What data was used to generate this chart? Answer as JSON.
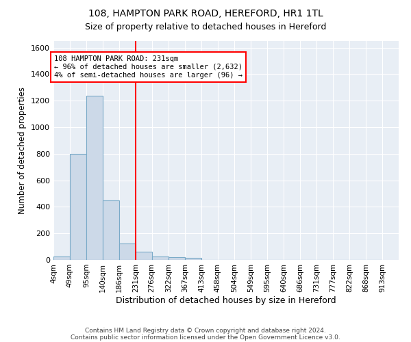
{
  "title1": "108, HAMPTON PARK ROAD, HEREFORD, HR1 1TL",
  "title2": "Size of property relative to detached houses in Hereford",
  "xlabel": "Distribution of detached houses by size in Hereford",
  "ylabel": "Number of detached properties",
  "bar_edges": [
    4,
    49,
    95,
    140,
    186,
    231,
    276,
    322,
    367,
    413,
    458,
    504,
    549,
    595,
    640,
    686,
    731,
    777,
    822,
    868,
    913
  ],
  "bar_heights": [
    25,
    800,
    1240,
    450,
    125,
    60,
    25,
    20,
    15,
    0,
    0,
    0,
    0,
    0,
    0,
    0,
    0,
    0,
    0,
    0
  ],
  "bar_color": "#ccd9e8",
  "bar_edge_color": "#7aaac8",
  "vline_x": 231,
  "vline_color": "red",
  "annotation_line1": "108 HAMPTON PARK ROAD: 231sqm",
  "annotation_line2": "← 96% of detached houses are smaller (2,632)",
  "annotation_line3": "4% of semi-detached houses are larger (96) →",
  "annotation_box_color": "white",
  "annotation_box_edge": "red",
  "ylim": [
    0,
    1650
  ],
  "yticks": [
    0,
    200,
    400,
    600,
    800,
    1000,
    1200,
    1400,
    1600
  ],
  "background_color": "#e8eef5",
  "grid_color": "#d0d8e8",
  "footer1": "Contains HM Land Registry data © Crown copyright and database right 2024.",
  "footer2": "Contains public sector information licensed under the Open Government Licence v3.0."
}
